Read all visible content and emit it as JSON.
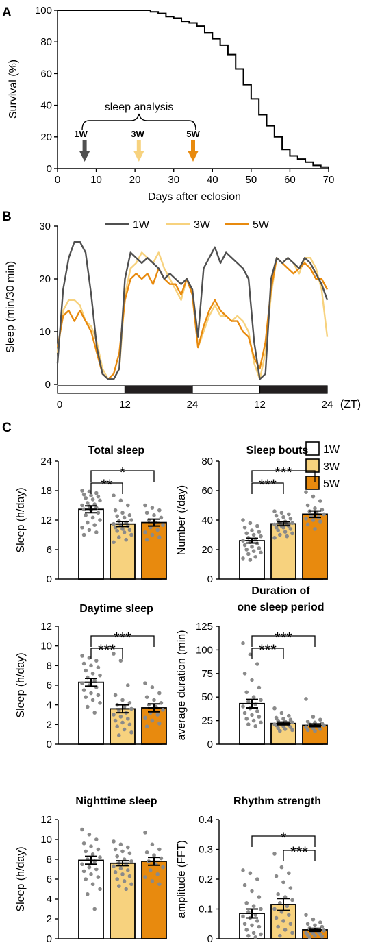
{
  "colors": {
    "w1": "#505050",
    "w3": "#F7D27E",
    "w5": "#E88A0E",
    "night": "#231F20",
    "dot": "#8a8a8a"
  },
  "panelA": {
    "letter": "A",
    "ylabel": "Survival (%)",
    "xlabel": "Days after eclosion",
    "annotation": "sleep analysis",
    "arrows": [
      {
        "label": "1W",
        "x": 7
      },
      {
        "label": "3W",
        "x": 21
      },
      {
        "label": "5W",
        "x": 35
      }
    ]
  },
  "panelB": {
    "letter": "B",
    "ylabel": "Sleep (min/30 min)",
    "zt_label": "(ZT)",
    "legend": [
      "1W",
      "3W",
      "5W"
    ]
  },
  "panelC": {
    "letter": "C",
    "legend": [
      "1W",
      "3W",
      "5W"
    ]
  },
  "chart_data": [
    {
      "type": "line",
      "id": "survival",
      "xlabel": "Days after eclosion",
      "ylabel": "Survival (%)",
      "xlim": [
        0,
        70
      ],
      "ylim": [
        0,
        100
      ],
      "xticks": [
        0,
        10,
        20,
        30,
        40,
        50,
        60,
        70
      ],
      "yticks": [
        0,
        20,
        40,
        60,
        80,
        100
      ],
      "x": [
        0,
        24,
        26,
        28,
        30,
        32,
        34,
        36,
        38,
        40,
        42,
        44,
        46,
        48,
        50,
        52,
        54,
        56,
        58,
        60,
        62,
        64,
        66,
        68,
        70
      ],
      "y": [
        100,
        99,
        98,
        96,
        95,
        93,
        92,
        90,
        86,
        82,
        78,
        72,
        63,
        53,
        44,
        34,
        27,
        20,
        12,
        8,
        6,
        4,
        2,
        1,
        0
      ]
    },
    {
      "type": "line",
      "id": "sleep_profile",
      "ylabel": "Sleep (min/30 min)",
      "ylim": [
        0,
        30
      ],
      "yticks": [
        0,
        10,
        20,
        30
      ],
      "xtick_labels": [
        "0",
        "12",
        "24",
        "12",
        "24"
      ],
      "x_half_hours": [
        0,
        2,
        4,
        6,
        8,
        10,
        12,
        14,
        16,
        18,
        20,
        22,
        24,
        26,
        28,
        30,
        32,
        34,
        36,
        38,
        40,
        42,
        44,
        46,
        48,
        50,
        52,
        54,
        56,
        58,
        60,
        62,
        64,
        66,
        68,
        70,
        72,
        74,
        76,
        78,
        80,
        82,
        84,
        86,
        88,
        90,
        92,
        94,
        96
      ],
      "series": [
        {
          "name": "1W",
          "values": [
            4,
            18,
            24,
            27,
            27,
            25,
            17,
            7,
            2,
            1,
            1,
            3,
            20,
            25,
            24,
            23,
            24,
            23,
            22,
            20,
            21,
            20,
            19,
            20,
            18,
            9,
            22,
            24,
            26,
            23,
            25,
            24,
            23,
            22,
            20,
            8,
            1,
            2,
            20,
            24,
            23,
            24,
            23,
            22,
            24,
            23,
            21,
            19,
            16
          ]
        },
        {
          "name": "3W",
          "values": [
            6,
            14,
            16,
            16,
            15,
            12,
            11,
            8,
            3,
            1,
            1,
            3,
            17,
            22,
            23,
            25,
            24,
            23,
            25,
            22,
            20,
            18,
            16,
            20,
            17,
            7,
            10,
            13,
            15,
            13,
            13,
            12,
            13,
            12,
            10,
            4,
            1,
            6,
            17,
            24,
            23,
            24,
            23,
            21,
            24,
            24,
            22,
            18,
            9
          ]
        },
        {
          "name": "5W",
          "values": [
            7,
            13,
            14,
            12,
            14,
            12,
            10,
            6,
            2,
            1,
            2,
            6,
            16,
            20,
            21,
            20,
            21,
            19,
            22,
            20,
            19,
            19,
            17,
            20,
            17,
            7,
            11,
            14,
            16,
            14,
            13,
            12,
            12,
            10,
            9,
            5,
            3,
            8,
            18,
            24,
            23,
            22,
            21,
            22,
            23,
            22,
            20,
            20,
            18
          ]
        }
      ]
    },
    {
      "type": "bar",
      "id": "total_sleep",
      "title": "Total sleep",
      "ylabel": "Sleep (h/day)",
      "ylim": [
        0,
        24
      ],
      "yticks": [
        0,
        6,
        12,
        18,
        24
      ],
      "categories": [
        "1W",
        "3W",
        "5W"
      ],
      "values": [
        14.2,
        11.2,
        11.5
      ],
      "sem": [
        0.7,
        0.5,
        0.7
      ],
      "significance": [
        {
          "pair": [
            0,
            1
          ],
          "label": "**"
        },
        {
          "pair": [
            0,
            2
          ],
          "label": "*"
        }
      ],
      "points": [
        [
          18,
          17.8,
          17.5,
          17.2,
          17,
          16.8,
          16.5,
          16.2,
          16,
          15.5,
          15.2,
          15,
          14.8,
          14.5,
          14.2,
          14,
          13.5,
          13,
          12.5,
          12,
          11.5,
          11,
          10.5,
          10,
          9.5,
          9
        ],
        [
          17,
          16,
          15,
          14,
          13.5,
          13,
          12.8,
          12.5,
          12,
          11.8,
          11.5,
          11.2,
          11,
          10.8,
          10.5,
          10.2,
          10,
          9.8,
          9.5,
          9,
          8.5,
          8,
          7.5
        ],
        [
          15,
          14.5,
          14,
          13.5,
          13,
          12.5,
          12,
          11.5,
          11,
          10.5,
          10,
          9.5,
          9,
          8.5,
          8
        ]
      ]
    },
    {
      "type": "bar",
      "id": "sleep_bouts",
      "title": "Sleep bouts",
      "ylabel": "Number (/day)",
      "ylim": [
        0,
        80
      ],
      "yticks": [
        0,
        20,
        40,
        60,
        80
      ],
      "categories": [
        "1W",
        "3W",
        "5W"
      ],
      "values": [
        26,
        37.5,
        44
      ],
      "sem": [
        1.6,
        1.3,
        2.2
      ],
      "significance": [
        {
          "pair": [
            0,
            1
          ],
          "label": "***"
        },
        {
          "pair": [
            0,
            2
          ],
          "label": "***"
        }
      ],
      "points": [
        [
          40,
          38,
          36,
          35,
          33,
          32,
          31,
          30,
          29,
          28,
          27,
          26,
          25,
          24,
          23,
          22,
          21,
          20,
          19,
          18,
          17,
          15,
          14,
          13
        ],
        [
          46,
          45,
          44,
          43,
          42,
          41,
          40,
          39,
          38,
          38,
          37,
          37,
          36,
          36,
          35,
          35,
          34,
          33,
          32,
          31,
          30,
          29,
          28
        ],
        [
          59,
          56,
          53,
          50,
          48,
          47,
          46,
          45,
          44,
          43,
          42,
          41,
          40,
          39,
          37,
          34
        ]
      ]
    },
    {
      "type": "bar",
      "id": "daytime_sleep",
      "title": "Daytime sleep",
      "ylabel": "Sleep (h/day)",
      "ylim": [
        0,
        12
      ],
      "yticks": [
        0,
        2,
        4,
        6,
        8,
        10,
        12
      ],
      "categories": [
        "1W",
        "3W",
        "5W"
      ],
      "values": [
        6.3,
        3.6,
        3.7
      ],
      "sem": [
        0.4,
        0.4,
        0.4
      ],
      "significance": [
        {
          "pair": [
            0,
            1
          ],
          "label": "***"
        },
        {
          "pair": [
            0,
            2
          ],
          "label": "***"
        }
      ],
      "points": [
        [
          9,
          8.8,
          8.5,
          8.2,
          8,
          7.8,
          7.5,
          7.2,
          7,
          6.8,
          6.5,
          6.2,
          6,
          5.8,
          5.5,
          5.2,
          5,
          4.8,
          4.5,
          4.2,
          3.8,
          3.2
        ],
        [
          9.2,
          8.5,
          6,
          5,
          4.5,
          4.2,
          4,
          3.8,
          3.6,
          3.4,
          3.2,
          3,
          2.8,
          2.6,
          2.4,
          2.2,
          2,
          1.8,
          1.5,
          1.2,
          0.9
        ],
        [
          6.2,
          5.8,
          5.2,
          4.8,
          4.5,
          4.2,
          4,
          3.8,
          3.5,
          3.2,
          3,
          2.7,
          2.4,
          2.1,
          1.8
        ]
      ]
    },
    {
      "type": "bar",
      "id": "sleep_duration",
      "title": "Duration of one sleep period",
      "title_lines": [
        "Duration of",
        "one sleep period"
      ],
      "ylabel": "average duration (min)",
      "ylim": [
        0,
        125
      ],
      "yticks": [
        0,
        25,
        50,
        75,
        100,
        125
      ],
      "categories": [
        "1W",
        "3W",
        "5W"
      ],
      "values": [
        43,
        22,
        20
      ],
      "sem": [
        4.5,
        1.5,
        1.5
      ],
      "significance": [
        {
          "pair": [
            0,
            1
          ],
          "label": "***"
        },
        {
          "pair": [
            0,
            2
          ],
          "label": "***"
        }
      ],
      "points": [
        [
          107,
          95,
          85,
          75,
          68,
          60,
          55,
          50,
          47,
          45,
          42,
          40,
          38,
          35,
          33,
          31,
          29,
          27,
          25,
          23,
          21,
          19
        ],
        [
          38,
          33,
          30,
          28,
          27,
          26,
          25,
          24,
          23,
          22,
          22,
          21,
          21,
          20,
          20,
          19,
          18,
          17,
          16,
          15,
          14
        ],
        [
          48,
          29,
          26,
          24,
          23,
          22,
          21,
          20,
          20,
          19,
          19,
          18,
          17,
          16,
          15,
          14
        ]
      ]
    },
    {
      "type": "bar",
      "id": "nighttime_sleep",
      "title": "Nighttime sleep",
      "ylabel": "Sleep (h/day)",
      "ylim": [
        0,
        12
      ],
      "yticks": [
        0,
        2,
        4,
        6,
        8,
        10,
        12
      ],
      "categories": [
        "1W",
        "3W",
        "5W"
      ],
      "values": [
        7.9,
        7.6,
        7.8
      ],
      "sem": [
        0.4,
        0.25,
        0.4
      ],
      "significance": [],
      "points": [
        [
          11,
          10.5,
          10,
          9.6,
          9.3,
          9,
          8.8,
          8.5,
          8.2,
          8,
          7.8,
          7.5,
          7.2,
          7,
          6.8,
          6.5,
          6.2,
          6,
          5.5,
          5,
          4.5,
          3
        ],
        [
          9.8,
          9.5,
          9.2,
          9,
          8.8,
          8.6,
          8.3,
          8,
          7.8,
          7.6,
          7.5,
          7.3,
          7.1,
          6.9,
          6.7,
          6.5,
          6.3,
          6,
          5.8,
          5.5,
          5.3,
          5
        ],
        [
          10.7,
          9.5,
          9,
          8.7,
          8.4,
          8.1,
          7.8,
          7.5,
          7.2,
          6.9,
          6.5,
          6.2,
          5.8,
          5.5
        ]
      ]
    },
    {
      "type": "bar",
      "id": "rhythm_strength",
      "title": "Rhythm strength",
      "ylabel": "amplitude (FFT)",
      "ylim": [
        0,
        0.4
      ],
      "yticks": [
        0,
        0.1,
        0.2,
        0.3,
        0.4
      ],
      "categories": [
        "1W",
        "3W",
        "5W"
      ],
      "values": [
        0.085,
        0.115,
        0.03
      ],
      "sem": [
        0.015,
        0.02,
        0.005
      ],
      "significance": [
        {
          "pair": [
            0,
            2
          ],
          "label": "*"
        },
        {
          "pair": [
            1,
            2
          ],
          "label": "***"
        }
      ],
      "points": [
        [
          0.23,
          0.22,
          0.2,
          0.18,
          0.16,
          0.14,
          0.12,
          0.11,
          0.1,
          0.09,
          0.08,
          0.075,
          0.07,
          0.06,
          0.05,
          0.045,
          0.04,
          0.03,
          0.02,
          0.015,
          0.01,
          0.005
        ],
        [
          0.285,
          0.24,
          0.22,
          0.21,
          0.19,
          0.17,
          0.15,
          0.14,
          0.13,
          0.12,
          0.11,
          0.1,
          0.09,
          0.08,
          0.07,
          0.06,
          0.05,
          0.04,
          0.03,
          0.02,
          0.01
        ],
        [
          0.08,
          0.065,
          0.055,
          0.05,
          0.045,
          0.04,
          0.035,
          0.03,
          0.028,
          0.025,
          0.022,
          0.02,
          0.018,
          0.015,
          0.012,
          0.01,
          0.008,
          0.005
        ]
      ]
    }
  ]
}
